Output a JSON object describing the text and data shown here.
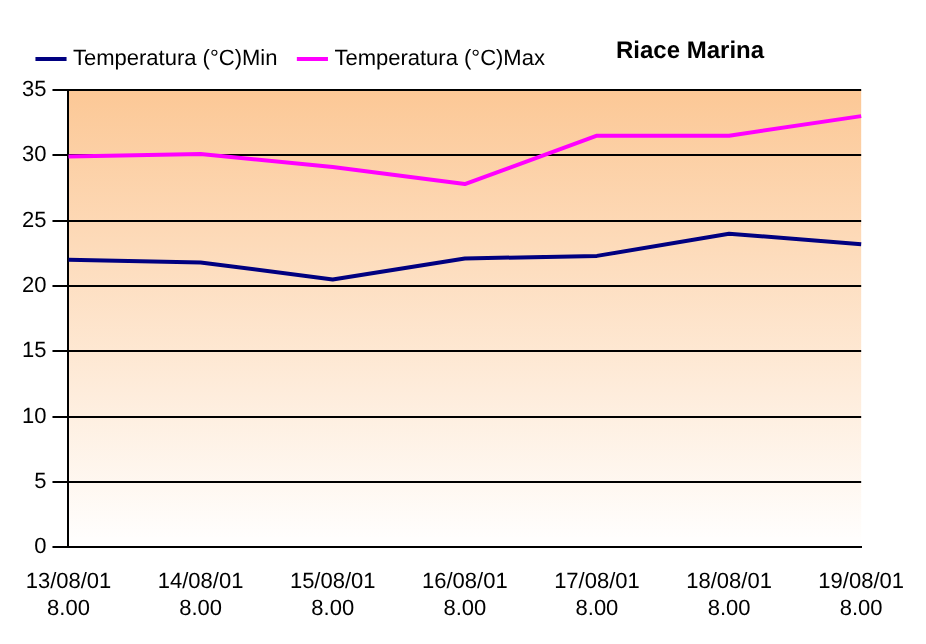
{
  "chart_data": {
    "type": "line",
    "title": "Riace Marina",
    "categories": [
      "13/08/01\n8.00",
      "14/08/01\n8.00",
      "15/08/01\n8.00",
      "16/08/01\n8.00",
      "17/08/01\n8.00",
      "18/08/01\n8.00",
      "19/08/01\n8.00"
    ],
    "series": [
      {
        "name": "Temperatura (°C)Min",
        "color": "#000080",
        "values": [
          22.0,
          21.8,
          20.5,
          22.1,
          22.3,
          24.0,
          23.2
        ]
      },
      {
        "name": "Temperatura (°C)Max",
        "color": "#ff00ff",
        "values": [
          29.9,
          30.1,
          29.1,
          27.8,
          31.5,
          31.5,
          33.0
        ]
      }
    ],
    "ylim": [
      0,
      35
    ],
    "yticks": [
      0,
      5,
      10,
      15,
      20,
      25,
      30,
      35
    ],
    "grid": "y",
    "legend": "top left",
    "marker": "none",
    "line_style": "solid"
  }
}
